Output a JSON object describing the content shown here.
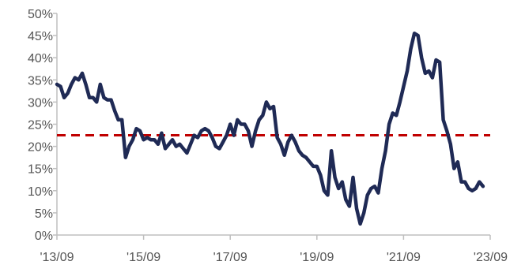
{
  "chart_data": {
    "type": "line",
    "title": "",
    "xlabel": "",
    "ylabel": "",
    "ylim": [
      0,
      50
    ],
    "xlim": [
      "2013-09",
      "2023-09"
    ],
    "grid": false,
    "legend": "none",
    "y_ticks": [
      "0%",
      "5%",
      "10%",
      "15%",
      "20%",
      "25%",
      "30%",
      "35%",
      "40%",
      "45%",
      "50%"
    ],
    "x_ticks": [
      "'13/09",
      "'15/09",
      "'17/09",
      "'19/09",
      "'21/09",
      "'23/09"
    ],
    "colors": {
      "series": "#1f2a55",
      "reference": "#c00000",
      "axis": "#bfbfbf",
      "text": "#555555"
    },
    "reference_line": {
      "value": 22.5,
      "style": "dashed"
    },
    "series": [
      {
        "points": [
          [
            "2013-09",
            34
          ],
          [
            "2013-10",
            33.5
          ],
          [
            "2013-11",
            31
          ],
          [
            "2013-12",
            32
          ],
          [
            "2014-01",
            34
          ],
          [
            "2014-02",
            35.5
          ],
          [
            "2014-03",
            35
          ],
          [
            "2014-04",
            36.5
          ],
          [
            "2014-05",
            34
          ],
          [
            "2014-06",
            31
          ],
          [
            "2014-07",
            31
          ],
          [
            "2014-08",
            30
          ],
          [
            "2014-09",
            34
          ],
          [
            "2014-10",
            31
          ],
          [
            "2014-11",
            30.5
          ],
          [
            "2014-12",
            30.5
          ],
          [
            "2015-01",
            28
          ],
          [
            "2015-02",
            26
          ],
          [
            "2015-03",
            26
          ],
          [
            "2015-04",
            17.5
          ],
          [
            "2015-05",
            20
          ],
          [
            "2015-06",
            21.5
          ],
          [
            "2015-07",
            24
          ],
          [
            "2015-08",
            23.5
          ],
          [
            "2015-09",
            21.5
          ],
          [
            "2015-10",
            22
          ],
          [
            "2015-11",
            21.5
          ],
          [
            "2015-12",
            21.5
          ],
          [
            "2016-01",
            20.5
          ],
          [
            "2016-02",
            23
          ],
          [
            "2016-03",
            19.5
          ],
          [
            "2016-04",
            20.5
          ],
          [
            "2016-05",
            21.5
          ],
          [
            "2016-06",
            20
          ],
          [
            "2016-07",
            20.5
          ],
          [
            "2016-08",
            19.5
          ],
          [
            "2016-09",
            18.5
          ],
          [
            "2016-10",
            20.5
          ],
          [
            "2016-11",
            22.5
          ],
          [
            "2016-12",
            22
          ],
          [
            "2017-01",
            23.5
          ],
          [
            "2017-02",
            24
          ],
          [
            "2017-03",
            23.5
          ],
          [
            "2017-04",
            22
          ],
          [
            "2017-05",
            20
          ],
          [
            "2017-06",
            19.5
          ],
          [
            "2017-07",
            21
          ],
          [
            "2017-08",
            22.5
          ],
          [
            "2017-09",
            25
          ],
          [
            "2017-10",
            22.5
          ],
          [
            "2017-11",
            26
          ],
          [
            "2017-12",
            25
          ],
          [
            "2018-01",
            25
          ],
          [
            "2018-02",
            23.5
          ],
          [
            "2018-03",
            20
          ],
          [
            "2018-04",
            23.5
          ],
          [
            "2018-05",
            26
          ],
          [
            "2018-06",
            27
          ],
          [
            "2018-07",
            30
          ],
          [
            "2018-08",
            28.5
          ],
          [
            "2018-09",
            29
          ],
          [
            "2018-10",
            22
          ],
          [
            "2018-11",
            20.5
          ],
          [
            "2018-12",
            18
          ],
          [
            "2019-01",
            21
          ],
          [
            "2019-02",
            22.5
          ],
          [
            "2019-03",
            21
          ],
          [
            "2019-04",
            19
          ],
          [
            "2019-05",
            18
          ],
          [
            "2019-06",
            17.5
          ],
          [
            "2019-07",
            16.5
          ],
          [
            "2019-08",
            15.5
          ],
          [
            "2019-09",
            15.5
          ],
          [
            "2019-10",
            13.5
          ],
          [
            "2019-11",
            10
          ],
          [
            "2019-12",
            9
          ],
          [
            "2020-01",
            19
          ],
          [
            "2020-02",
            13
          ],
          [
            "2020-03",
            10.5
          ],
          [
            "2020-04",
            12
          ],
          [
            "2020-05",
            8
          ],
          [
            "2020-06",
            6.5
          ],
          [
            "2020-07",
            13
          ],
          [
            "2020-08",
            6
          ],
          [
            "2020-09",
            2.5
          ],
          [
            "2020-10",
            5
          ],
          [
            "2020-11",
            9
          ],
          [
            "2020-12",
            10.5
          ],
          [
            "2021-01",
            11
          ],
          [
            "2021-02",
            9.5
          ],
          [
            "2021-03",
            15
          ],
          [
            "2021-04",
            19
          ],
          [
            "2021-05",
            25
          ],
          [
            "2021-06",
            27.5
          ],
          [
            "2021-07",
            27
          ],
          [
            "2021-08",
            30
          ],
          [
            "2021-09",
            33.5
          ],
          [
            "2021-10",
            37
          ],
          [
            "2021-11",
            42
          ],
          [
            "2021-12",
            45.5
          ],
          [
            "2022-01",
            45
          ],
          [
            "2022-02",
            40
          ],
          [
            "2022-03",
            36.5
          ],
          [
            "2022-04",
            37
          ],
          [
            "2022-05",
            35.5
          ],
          [
            "2022-06",
            39.5
          ],
          [
            "2022-07",
            39
          ],
          [
            "2022-08",
            26
          ],
          [
            "2022-09",
            23.5
          ],
          [
            "2022-10",
            20.5
          ],
          [
            "2022-11",
            15
          ],
          [
            "2022-12",
            16.5
          ],
          [
            "2023-01",
            12
          ],
          [
            "2023-02",
            12
          ],
          [
            "2023-03",
            10.5
          ],
          [
            "2023-04",
            10
          ],
          [
            "2023-05",
            10.5
          ],
          [
            "2023-06",
            12
          ],
          [
            "2023-07",
            11
          ]
        ]
      }
    ]
  }
}
